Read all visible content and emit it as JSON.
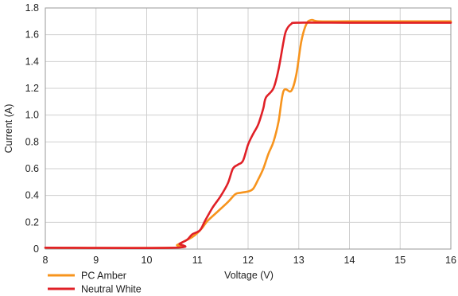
{
  "chart_data": {
    "type": "line",
    "title": "",
    "xlabel": "Voltage (V)",
    "ylabel": "Current (A)",
    "xlim": [
      8,
      16
    ],
    "ylim": [
      0,
      1.8
    ],
    "x_ticks": [
      "8",
      "9",
      "10",
      "11",
      "12",
      "13",
      "14",
      "15",
      "16"
    ],
    "y_ticks": [
      "0",
      "0.2",
      "0.4",
      "0.6",
      "0.8",
      "1.0",
      "1.2",
      "1.4",
      "1.6",
      "1.8"
    ],
    "grid": true,
    "legend_position": "bottom-left",
    "series": [
      {
        "name": "PC Amber",
        "color": "#f7941d",
        "points": [
          [
            8.0,
            0.01
          ],
          [
            10.5,
            0.01
          ],
          [
            10.6,
            0.03
          ],
          [
            10.75,
            0.06
          ],
          [
            10.9,
            0.09
          ],
          [
            11.0,
            0.12
          ],
          [
            11.1,
            0.16
          ],
          [
            11.2,
            0.21
          ],
          [
            11.4,
            0.28
          ],
          [
            11.6,
            0.35
          ],
          [
            11.75,
            0.41
          ],
          [
            11.85,
            0.42
          ],
          [
            12.0,
            0.43
          ],
          [
            12.1,
            0.45
          ],
          [
            12.2,
            0.52
          ],
          [
            12.3,
            0.6
          ],
          [
            12.4,
            0.71
          ],
          [
            12.5,
            0.8
          ],
          [
            12.6,
            0.95
          ],
          [
            12.7,
            1.18
          ],
          [
            12.85,
            1.18
          ],
          [
            12.95,
            1.3
          ],
          [
            13.05,
            1.55
          ],
          [
            13.15,
            1.68
          ],
          [
            13.25,
            1.71
          ],
          [
            13.4,
            1.7
          ],
          [
            14.0,
            1.7
          ],
          [
            15.0,
            1.7
          ],
          [
            16.0,
            1.7
          ]
        ]
      },
      {
        "name": "Neutral White",
        "color": "#e02027",
        "points": [
          [
            8.0,
            0.01
          ],
          [
            10.55,
            0.01
          ],
          [
            10.65,
            0.04
          ],
          [
            10.8,
            0.07
          ],
          [
            10.9,
            0.11
          ],
          [
            11.05,
            0.14
          ],
          [
            11.15,
            0.21
          ],
          [
            11.3,
            0.31
          ],
          [
            11.45,
            0.39
          ],
          [
            11.6,
            0.49
          ],
          [
            11.7,
            0.6
          ],
          [
            11.8,
            0.63
          ],
          [
            11.9,
            0.66
          ],
          [
            12.0,
            0.78
          ],
          [
            12.1,
            0.86
          ],
          [
            12.2,
            0.93
          ],
          [
            12.3,
            1.05
          ],
          [
            12.35,
            1.13
          ],
          [
            12.5,
            1.2
          ],
          [
            12.6,
            1.34
          ],
          [
            12.7,
            1.55
          ],
          [
            12.75,
            1.63
          ],
          [
            12.85,
            1.68
          ],
          [
            13.0,
            1.69
          ],
          [
            14.0,
            1.69
          ],
          [
            15.0,
            1.69
          ],
          [
            16.0,
            1.69
          ]
        ]
      }
    ]
  }
}
